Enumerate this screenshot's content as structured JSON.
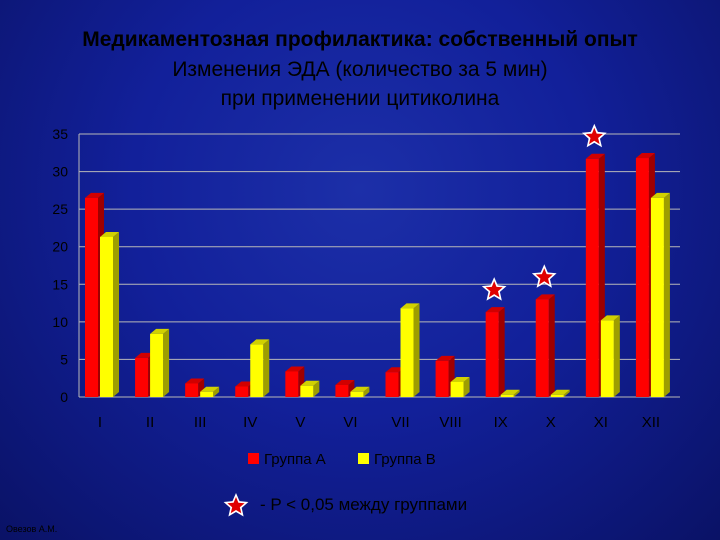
{
  "title": {
    "line1": "Медикаментозная профилактика: собственный опыт",
    "line2": "Изменения ЭДА (количество за 5 мин)",
    "line3": "при применении цитиколина"
  },
  "footnote": {
    "marker": "star-icon",
    "text": "- P < 0,05 между группами"
  },
  "author": "Овезов А.М.",
  "colors": {
    "group_a": "#ff0000",
    "group_b": "#ffff00",
    "star_outline": "#ffffff",
    "star_fill": "#e00000",
    "grid": "#b8b8b8",
    "text": "#000000"
  },
  "chart_data": {
    "type": "bar",
    "categories": [
      "I",
      "II",
      "III",
      "IV",
      "V",
      "VI",
      "VII",
      "VIII",
      "IX",
      "X",
      "XI",
      "XII"
    ],
    "series": [
      {
        "name": "Группа А",
        "values": [
          26.5,
          5.2,
          1.8,
          1.4,
          3.4,
          1.6,
          3.3,
          4.8,
          11.3,
          13.0,
          31.7,
          31.8
        ]
      },
      {
        "name": "Группа В",
        "values": [
          21.3,
          8.4,
          0.7,
          7.0,
          1.5,
          0.7,
          11.8,
          2.0,
          0.3,
          0.3,
          10.2,
          26.5
        ]
      }
    ],
    "ylim": [
      0,
      35
    ],
    "yticks": [
      0,
      5,
      10,
      15,
      20,
      25,
      30,
      35
    ],
    "grid": true,
    "legend": "bottom-center",
    "significant_categories": [
      "IX",
      "X",
      "XI"
    ]
  }
}
